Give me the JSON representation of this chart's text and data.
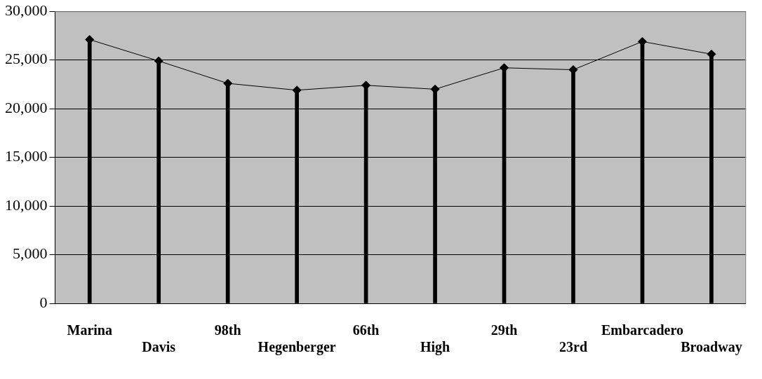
{
  "chart_data": {
    "type": "line",
    "categories": [
      "Marina",
      "Davis",
      "98th",
      "Hegenberger",
      "66th",
      "High",
      "29th",
      "23rd",
      "Embarcadero",
      "Broadway"
    ],
    "series": [
      {
        "type": "bar",
        "color": "#000000",
        "values": [
          27100,
          24900,
          22600,
          21900,
          22400,
          22000,
          24200,
          24000,
          26900,
          25600
        ]
      },
      {
        "color": "#000000",
        "values": [
          27100,
          24900,
          22600,
          21900,
          22400,
          22000,
          24200,
          24000,
          26900,
          25600
        ]
      }
    ],
    "ylim": [
      0,
      30000
    ],
    "yticks": [
      {
        "value": 0,
        "label": "0"
      },
      {
        "value": 5000,
        "label": "5,000"
      },
      {
        "value": 10000,
        "label": "10,000"
      },
      {
        "value": 15000,
        "label": "15,000"
      },
      {
        "value": 20000,
        "label": "20,000"
      },
      {
        "value": 25000,
        "label": "25,000"
      },
      {
        "value": 30000,
        "label": "30,000"
      }
    ],
    "grid": "y",
    "marker": "diamond",
    "legend": false
  }
}
